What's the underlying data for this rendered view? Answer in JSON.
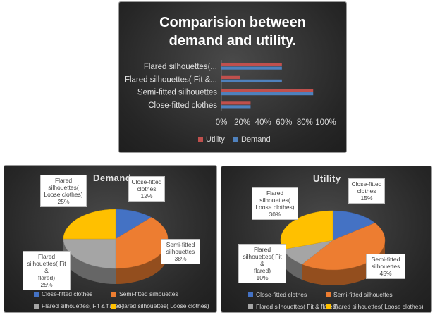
{
  "chart_data": [
    {
      "type": "bar",
      "orientation": "horizontal",
      "title": "Comparision between demand and utility.",
      "title_lines": [
        "Comparision between",
        "demand and utility."
      ],
      "categories": [
        "Close-fitted clothes",
        "Semi-fitted silhouettes",
        "Flared silhouettes( Fit &...",
        "Flared silhouettes(..."
      ],
      "series": [
        {
          "name": "Demand",
          "values": [
            0.28,
            0.88,
            0.58,
            0.58
          ],
          "color": "#4f81bd"
        },
        {
          "name": "Utility",
          "values": [
            0.28,
            0.88,
            0.18,
            0.58
          ],
          "color": "#c0504d"
        }
      ],
      "xlim": [
        0,
        1
      ],
      "xticks": [
        "0%",
        "20%",
        "40%",
        "60%",
        "80%",
        "100%"
      ],
      "grid": false,
      "legend_position": "bottom",
      "legend_order": [
        "Utility",
        "Demand"
      ]
    },
    {
      "type": "pie",
      "title": "Demand",
      "categories": [
        "Close-fitted clothes",
        "Semi-fitted silhouettes",
        "Flared silhouettes( Fit & flared)",
        "Flared silhouettes( Loose clothes)"
      ],
      "values": [
        12,
        38,
        25,
        25
      ],
      "colors": [
        "#4472c4",
        "#ed7d31",
        "#a5a5a5",
        "#ffc000"
      ],
      "labels": [
        "Close-fitted\nclothes\n12%",
        "Semi-fitted\nsilhouettes\n38%",
        "Flared\nsilhouettes( Fit &\nflared)\n25%",
        "Flared\nsilhouettes(\nLoose clothes)\n25%"
      ],
      "legend_position": "bottom"
    },
    {
      "type": "pie",
      "title": "Utility",
      "categories": [
        "Close-fitted clothes",
        "Semi-fitted silhouettes",
        "Flared silhouettes( Fit & flared)",
        "Flared silhouettes( Loose clothes)"
      ],
      "values": [
        15,
        45,
        10,
        30
      ],
      "colors": [
        "#4472c4",
        "#ed7d31",
        "#a5a5a5",
        "#ffc000"
      ],
      "labels": [
        "Close-fitted\nclothes\n15%",
        "Semi-fitted\nsilhouettes\n45%",
        "Flared\nsilhouettes( Fit &\nflared)\n10%",
        "Flared\nsilhouettes(\nLoose clothes)\n30%"
      ],
      "legend_position": "bottom"
    }
  ]
}
